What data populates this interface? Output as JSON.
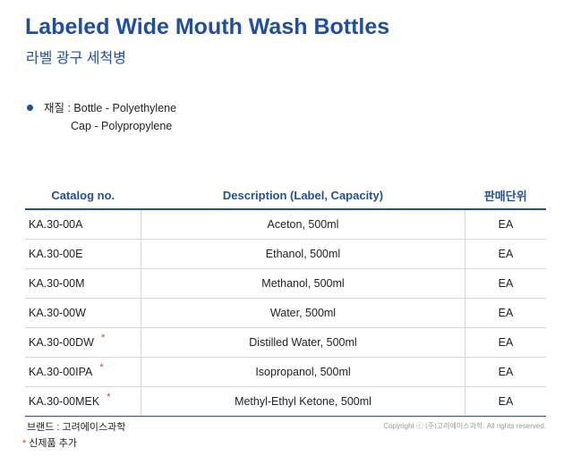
{
  "header": {
    "title": "Labeled Wide Mouth Wash Bottles",
    "subtitle": "라벨 광구 세척병"
  },
  "material": {
    "line1": "재질 : Bottle - Polyethylene",
    "line2": "Cap - Polypropylene"
  },
  "table": {
    "headers": [
      "Catalog no.",
      "Description (Label, Capacity)",
      "판매단위"
    ],
    "rows": [
      {
        "catalog": "KA.30-00A",
        "description": "Aceton, 500ml",
        "unit": "EA",
        "new": ""
      },
      {
        "catalog": "KA.30-00E",
        "description": "Ethanol, 500ml",
        "unit": "EA",
        "new": ""
      },
      {
        "catalog": "KA.30-00M",
        "description": "Methanol, 500ml",
        "unit": "EA",
        "new": ""
      },
      {
        "catalog": "KA.30-00W",
        "description": "Water, 500ml",
        "unit": "EA",
        "new": ""
      },
      {
        "catalog": "KA.30-00DW",
        "description": "Distilled Water, 500ml",
        "unit": "EA",
        "new": "*"
      },
      {
        "catalog": "KA.30-00IPA",
        "description": "Isopropanol, 500ml",
        "unit": "EA",
        "new": "*"
      },
      {
        "catalog": "KA.30-00MEK",
        "description": "Methyl-Ethyl Ketone, 500ml",
        "unit": "EA",
        "new": "*"
      }
    ]
  },
  "footer": {
    "brand": "브랜드 : 고려에이스과학",
    "new_mark": "*",
    "new_note": "신제품 추가",
    "copyright": "Copyright ⓒ (주)고려에이스과학. All rights reserved."
  },
  "colors": {
    "accent": "#1f4fa3",
    "new_mark": "#e23b2e"
  }
}
